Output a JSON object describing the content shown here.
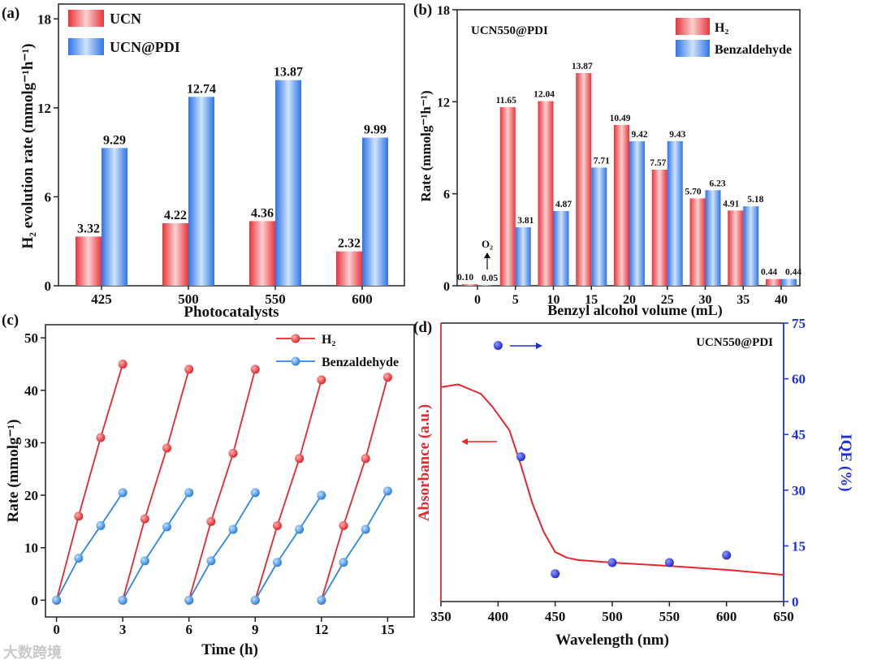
{
  "watermark": "大数跨境",
  "chart_data": [
    {
      "panel": "(a)",
      "type": "bar",
      "title": "",
      "xlabel": "Photocatalysts",
      "ylabel": "H₂ evolution rate (mmolg⁻¹h⁻¹)",
      "categories": [
        "425",
        "500",
        "550",
        "600"
      ],
      "series": [
        {
          "name": "UCN",
          "values": [
            3.32,
            4.22,
            4.36,
            2.32
          ],
          "labels": [
            "3.32",
            "4.22",
            "4.36",
            "2.32"
          ],
          "color": "#e8343a"
        },
        {
          "name": "UCN@PDI",
          "values": [
            9.29,
            12.74,
            13.87,
            9.99
          ],
          "labels": [
            "9.29",
            "12.74",
            "13.87",
            "9.99"
          ],
          "color": "#2f74e6"
        }
      ],
      "yticks": [
        "0",
        "6",
        "12",
        "18"
      ],
      "ylim": [
        0,
        19
      ],
      "legend": "top-left"
    },
    {
      "panel": "(b)",
      "type": "bar",
      "annotation": "UCN550@PDI",
      "arrow_note": "O₂",
      "xlabel": "Benzyl alcohol volume (mL)",
      "ylabel": "Rate (mmolg⁻¹h⁻¹)",
      "categories": [
        "0",
        "5",
        "10",
        "15",
        "20",
        "25",
        "30",
        "35",
        "40"
      ],
      "series": [
        {
          "name": "H₂",
          "values": [
            0.1,
            11.65,
            12.04,
            13.87,
            10.49,
            7.57,
            5.7,
            4.91,
            0.44
          ],
          "labels": [
            "0.10",
            "11.65",
            "12.04",
            "13.87",
            "10.49",
            "7.57",
            "5.70",
            "4.91",
            "0.44"
          ],
          "color": "#e8343a"
        },
        {
          "name": "Benzaldehyde",
          "values": [
            0.05,
            3.81,
            4.87,
            7.71,
            9.42,
            9.43,
            6.23,
            5.18,
            0.44
          ],
          "labels": [
            "0.05",
            "3.81",
            "4.87",
            "7.71",
            "9.42",
            "9.43",
            "6.23",
            "5.18",
            "0.44"
          ],
          "color": "#2f74e6"
        }
      ],
      "yticks": [
        "0",
        "6",
        "12",
        "18"
      ],
      "ylim": [
        0,
        18
      ],
      "legend": "top-right"
    },
    {
      "panel": "(c)",
      "type": "line",
      "xlabel": "Time (h)",
      "ylabel": "Rate (mmolg⁻¹)",
      "xticks": [
        "0",
        "3",
        "6",
        "9",
        "12",
        "15"
      ],
      "yticks": [
        "0",
        "10",
        "20",
        "30",
        "40",
        "50"
      ],
      "xlim": [
        -0.5,
        16.2
      ],
      "ylim": [
        -3.2,
        52.5
      ],
      "series": [
        {
          "name": "H₂",
          "color": "#e8262c",
          "segments": [
            [
              [
                0,
                0
              ],
              [
                1,
                16
              ],
              [
                2,
                31
              ],
              [
                3,
                45
              ]
            ],
            [
              [
                3,
                0
              ],
              [
                4,
                15.5
              ],
              [
                5,
                29
              ],
              [
                6,
                44
              ]
            ],
            [
              [
                6,
                0
              ],
              [
                7,
                15
              ],
              [
                8,
                28
              ],
              [
                9,
                44
              ]
            ],
            [
              [
                9,
                0
              ],
              [
                10,
                14.2
              ],
              [
                11,
                27
              ],
              [
                12,
                42
              ]
            ],
            [
              [
                12,
                0
              ],
              [
                13,
                14.2
              ],
              [
                14,
                27
              ],
              [
                15,
                42.5
              ]
            ]
          ]
        },
        {
          "name": "Benzaldehyde",
          "color": "#2f86e0",
          "segments": [
            [
              [
                0,
                0
              ],
              [
                1,
                8
              ],
              [
                2,
                14.2
              ],
              [
                3,
                20.5
              ]
            ],
            [
              [
                3,
                0
              ],
              [
                4,
                7.5
              ],
              [
                5,
                14
              ],
              [
                6,
                20.5
              ]
            ],
            [
              [
                6,
                0
              ],
              [
                7,
                7.5
              ],
              [
                8,
                13.5
              ],
              [
                9,
                20.5
              ]
            ],
            [
              [
                9,
                0
              ],
              [
                10,
                7.2
              ],
              [
                11,
                13.5
              ],
              [
                12,
                20
              ]
            ],
            [
              [
                12,
                0
              ],
              [
                13,
                7.2
              ],
              [
                14,
                13.5
              ],
              [
                15,
                20.8
              ]
            ]
          ]
        }
      ],
      "legend": "top-right"
    },
    {
      "panel": "(d)",
      "type": "line",
      "annotation": "UCN550@PDI",
      "xlabel": "Wavelength (nm)",
      "ylabel": "Absorbance (a.u.)",
      "y2label": "IQE (%)",
      "xticks": [
        "350",
        "400",
        "450",
        "500",
        "550",
        "600",
        "650"
      ],
      "y2ticks": [
        "0",
        "15",
        "30",
        "45",
        "60",
        "75"
      ],
      "xlim": [
        350,
        650
      ],
      "ylim": [
        0,
        1
      ],
      "y2lim": [
        0,
        75
      ],
      "absorbance": {
        "color": "#e8262c",
        "points": [
          [
            350,
            0.77
          ],
          [
            365,
            0.78
          ],
          [
            385,
            0.746
          ],
          [
            395,
            0.7
          ],
          [
            410,
            0.615
          ],
          [
            420,
            0.49
          ],
          [
            430,
            0.353
          ],
          [
            440,
            0.25
          ],
          [
            450,
            0.178
          ],
          [
            460,
            0.158
          ],
          [
            470,
            0.149
          ],
          [
            500,
            0.14
          ],
          [
            550,
            0.128
          ],
          [
            600,
            0.114
          ],
          [
            650,
            0.096
          ]
        ]
      },
      "iqe": {
        "color": "#1f2fd6",
        "points": [
          [
            400,
            69
          ],
          [
            420,
            39
          ],
          [
            450,
            7.5
          ],
          [
            500,
            10.5
          ],
          [
            550,
            10.5
          ],
          [
            600,
            12.5
          ]
        ]
      }
    }
  ]
}
